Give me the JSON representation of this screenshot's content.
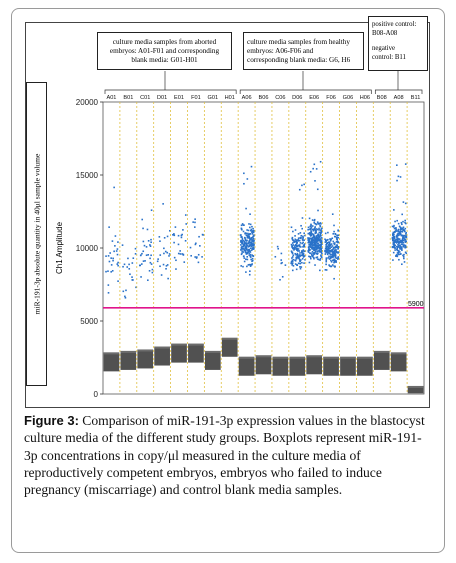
{
  "legends": {
    "aborted": [
      "culture media samples from aborted",
      "embryos: A01-F01 and corresponding",
      "blank media: G01-H01"
    ],
    "healthy": [
      "culture media samples from healthy",
      "embryos: A06-F06 and",
      "corresponding blank media: G6, H6"
    ],
    "controls": {
      "positive": [
        "positive control:",
        "B08-A08"
      ],
      "negative": [
        "negative",
        "control: B11"
      ]
    }
  },
  "side_label": "miR-191-3p absolute quantity in 40μl sample volume",
  "caption": {
    "label": "Figure 3:",
    "text": " Comparison of miR-191-3p expression values in the blastocyst culture media of the different study groups. Boxplots represent miR-191-3p concentrations in copy/μl measured in the culture media of reproductively competent embryos, embryos who failed to induce pregnancy (miscarriage) and control blank media samples."
  },
  "chart_data": {
    "type": "scatter",
    "ylabel": "Ch1 Amplitude",
    "ylim": [
      0,
      20000
    ],
    "yticks": [
      0,
      5000,
      10000,
      15000,
      20000
    ],
    "threshold": {
      "value": 5900,
      "label": "5900",
      "color": "#e0148c"
    },
    "wells": [
      "A01",
      "B01",
      "C01",
      "D01",
      "E01",
      "F01",
      "G01",
      "H01",
      "A06",
      "B06",
      "C06",
      "D06",
      "E06",
      "F06",
      "G06",
      "H06",
      "B08",
      "A08",
      "B11"
    ],
    "positive_center": [
      9300,
      8400,
      9500,
      9600,
      10300,
      10600,
      0,
      0,
      10300,
      0,
      9100,
      10000,
      10500,
      10000,
      0,
      0,
      0,
      10600,
      0
    ],
    "positive_count": [
      28,
      20,
      32,
      22,
      24,
      18,
      0,
      0,
      220,
      0,
      10,
      160,
      320,
      200,
      0,
      0,
      0,
      230,
      0
    ],
    "negative_center": [
      2200,
      2300,
      2400,
      2600,
      2800,
      2800,
      2300,
      3200,
      1900,
      2000,
      1900,
      1900,
      2000,
      1900,
      1900,
      1900,
      2300,
      2200,
      300
    ],
    "point_color": "#2a72c9",
    "negative_color": "#333333",
    "separator_color": "#e0c040"
  }
}
